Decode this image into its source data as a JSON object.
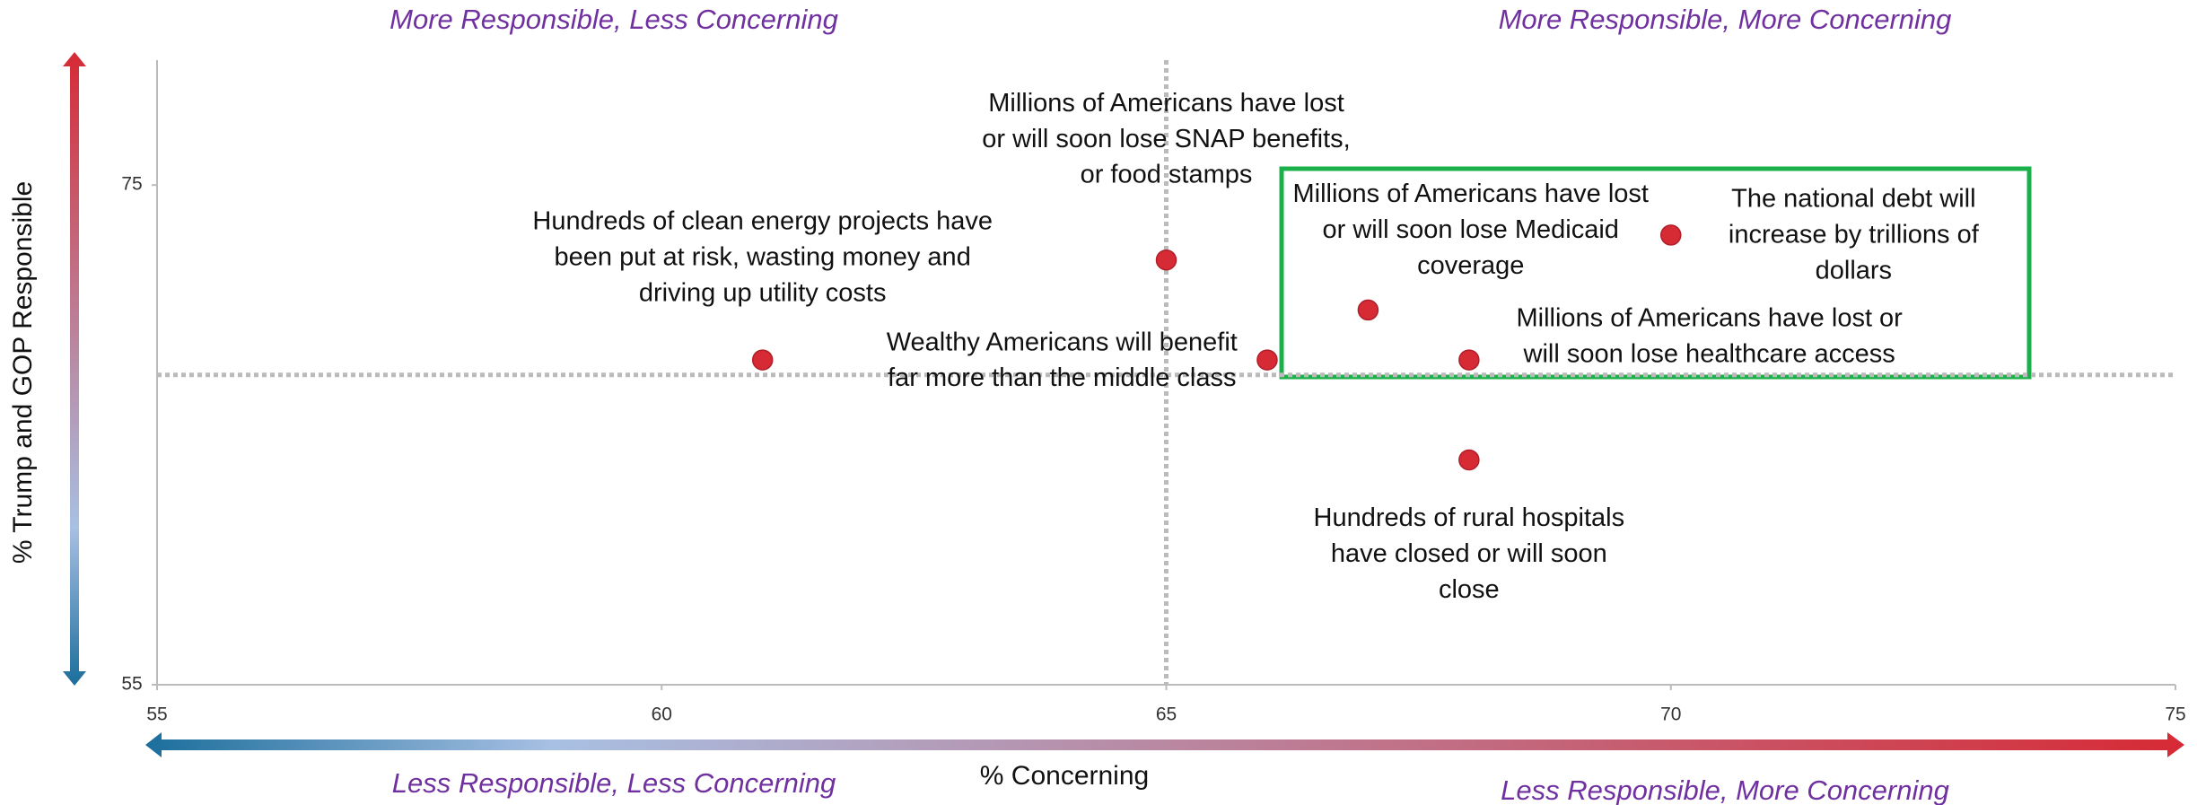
{
  "chart_data": {
    "type": "scatter",
    "xlabel": "% Concerning",
    "ylabel": "% Trump and GOP Responsible",
    "quadrants": {
      "top_left": "More Responsible, Less Concerning",
      "top_right": "More Responsible, More Concerning",
      "bottom_left": "Less Responsible, Less Concerning",
      "bottom_right": "Less Responsible, More Concerning"
    },
    "x": [
      61,
      65,
      66,
      67,
      68,
      70,
      68
    ],
    "values": [
      68,
      72,
      68,
      70,
      68,
      73,
      64
    ],
    "labels": [
      [
        "Hundreds of clean energy projects have",
        "been put at risk, wasting money and",
        "driving up utility costs"
      ],
      [
        "Millions of Americans have lost",
        "or will soon lose SNAP benefits,",
        "or food stamps"
      ],
      [
        "Wealthy Americans will benefit",
        "far more than the middle class"
      ],
      [
        "Millions of Americans have lost",
        "or will soon lose Medicaid",
        "coverage"
      ],
      [
        "Millions of Americans have lost or",
        "will soon lose healthcare access"
      ],
      [
        "The national debt will",
        "increase by trillions of",
        "dollars"
      ],
      [
        "Hundreds of rural hospitals",
        "have closed or will soon",
        "close"
      ]
    ],
    "color": "#d62a35",
    "xlim": [
      55,
      75
    ],
    "xticks": [
      55,
      60,
      65,
      70,
      75
    ],
    "ylim": [
      55,
      80
    ],
    "yticks": [
      55,
      75
    ],
    "reference_x": 65,
    "reference_y": 67.4
  }
}
